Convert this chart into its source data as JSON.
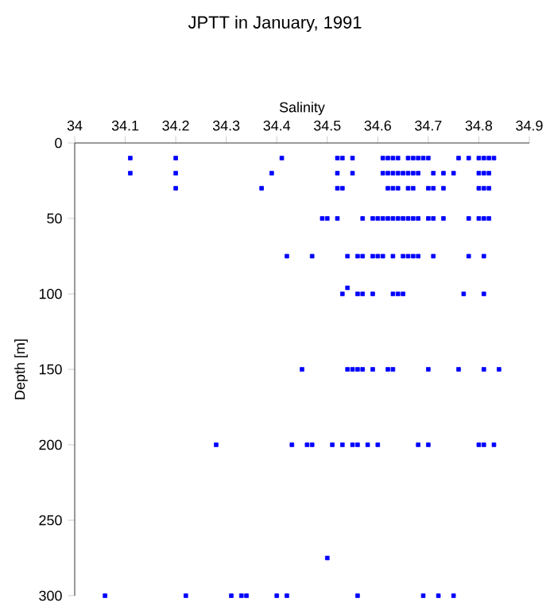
{
  "chart_data": {
    "type": "scatter",
    "title": "JPTT in January, 1991",
    "xlabel": "Salinity",
    "ylabel": "Depth [m]",
    "xlim": [
      34,
      34.9
    ],
    "xticks": [
      34,
      34.1,
      34.2,
      34.3,
      34.4,
      34.5,
      34.6,
      34.7,
      34.8,
      34.9
    ],
    "ylim": [
      300,
      0
    ],
    "yticks": [
      0,
      50,
      100,
      150,
      200,
      250,
      300
    ],
    "marker": "square",
    "color": "#0000ff",
    "x": [
      34.11,
      34.2,
      34.41,
      34.52,
      34.53,
      34.55,
      34.61,
      34.62,
      34.63,
      34.64,
      34.66,
      34.67,
      34.68,
      34.69,
      34.7,
      34.76,
      34.78,
      34.8,
      34.81,
      34.82,
      34.83,
      34.11,
      34.2,
      34.39,
      34.52,
      34.55,
      34.61,
      34.62,
      34.63,
      34.64,
      34.65,
      34.66,
      34.67,
      34.68,
      34.71,
      34.73,
      34.75,
      34.8,
      34.81,
      34.82,
      34.2,
      34.37,
      34.52,
      34.53,
      34.62,
      34.63,
      34.64,
      34.66,
      34.67,
      34.7,
      34.71,
      34.73,
      34.8,
      34.81,
      34.82,
      34.49,
      34.5,
      34.52,
      34.57,
      34.59,
      34.6,
      34.61,
      34.62,
      34.63,
      34.64,
      34.65,
      34.66,
      34.67,
      34.68,
      34.7,
      34.71,
      34.73,
      34.78,
      34.8,
      34.81,
      34.82,
      34.42,
      34.47,
      34.54,
      34.56,
      34.57,
      34.59,
      34.6,
      34.61,
      34.63,
      34.65,
      34.66,
      34.67,
      34.68,
      34.71,
      34.78,
      34.81,
      34.53,
      34.54,
      34.56,
      34.57,
      34.59,
      34.63,
      34.64,
      34.65,
      34.77,
      34.81,
      34.45,
      34.54,
      34.55,
      34.56,
      34.57,
      34.59,
      34.62,
      34.63,
      34.7,
      34.76,
      34.81,
      34.84,
      34.28,
      34.43,
      34.46,
      34.47,
      34.51,
      34.53,
      34.55,
      34.56,
      34.58,
      34.6,
      34.68,
      34.7,
      34.8,
      34.81,
      34.83,
      34.5,
      34.06,
      34.22,
      34.31,
      34.33,
      34.34,
      34.4,
      34.42,
      34.56,
      34.69,
      34.72,
      34.75
    ],
    "values": [
      10,
      10,
      10,
      10,
      10,
      10,
      10,
      10,
      10,
      10,
      10,
      10,
      10,
      10,
      10,
      10,
      10,
      10,
      10,
      10,
      10,
      20,
      20,
      20,
      20,
      20,
      20,
      20,
      20,
      20,
      20,
      20,
      20,
      20,
      20,
      20,
      20,
      20,
      20,
      20,
      30,
      30,
      30,
      30,
      30,
      30,
      30,
      30,
      30,
      30,
      30,
      30,
      30,
      30,
      30,
      50,
      50,
      50,
      50,
      50,
      50,
      50,
      50,
      50,
      50,
      50,
      50,
      50,
      50,
      50,
      50,
      50,
      50,
      50,
      50,
      50,
      75,
      75,
      75,
      75,
      75,
      75,
      75,
      75,
      75,
      75,
      75,
      75,
      75,
      75,
      75,
      75,
      100,
      96,
      100,
      100,
      100,
      100,
      100,
      100,
      100,
      100,
      150,
      150,
      150,
      150,
      150,
      150,
      150,
      150,
      150,
      150,
      150,
      150,
      200,
      200,
      200,
      200,
      200,
      200,
      200,
      200,
      200,
      200,
      200,
      200,
      200,
      200,
      200,
      275,
      300,
      300,
      300,
      300,
      300,
      300,
      300,
      300,
      300,
      300,
      300
    ]
  }
}
